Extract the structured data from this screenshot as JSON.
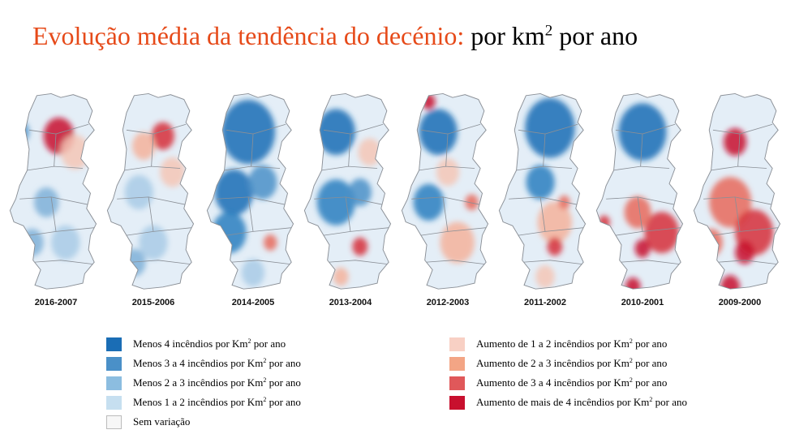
{
  "title": {
    "main": "Evolução média da tendência do decénio:",
    "unit_pre": " por km",
    "unit_sup": "2",
    "unit_post": " por ano"
  },
  "maps": [
    {
      "label": "2016-2007",
      "spots": [
        [
          "#c8102e",
          0.53,
          0.22,
          0.16
        ],
        [
          "#4a90c8",
          0.12,
          0.2,
          0.1
        ],
        [
          "#f4c7b6",
          0.7,
          0.3,
          0.15
        ],
        [
          "#7fb0d8",
          0.4,
          0.55,
          0.13
        ],
        [
          "#a9cbe6",
          0.6,
          0.75,
          0.15
        ],
        [
          "#7fb0d8",
          0.25,
          0.75,
          0.12
        ]
      ]
    },
    {
      "label": "2015-2006",
      "spots": [
        [
          "#d6303a",
          0.6,
          0.22,
          0.12
        ],
        [
          "#f4b39c",
          0.4,
          0.27,
          0.12
        ],
        [
          "#a9cbe6",
          0.35,
          0.5,
          0.15
        ],
        [
          "#f4c7b6",
          0.7,
          0.4,
          0.13
        ],
        [
          "#a9cbe6",
          0.5,
          0.75,
          0.15
        ],
        [
          "#7fb0d8",
          0.3,
          0.85,
          0.12
        ]
      ]
    },
    {
      "label": "2014-2005",
      "spots": [
        [
          "#1a6db5",
          0.45,
          0.2,
          0.28
        ],
        [
          "#1a6db5",
          0.3,
          0.5,
          0.2
        ],
        [
          "#2b7fc0",
          0.25,
          0.7,
          0.18
        ],
        [
          "#e86a5c",
          0.68,
          0.75,
          0.07
        ],
        [
          "#4a90c8",
          0.6,
          0.45,
          0.15
        ],
        [
          "#a9cbe6",
          0.5,
          0.9,
          0.12
        ]
      ]
    },
    {
      "label": "2013-2004",
      "spots": [
        [
          "#1a6db5",
          0.35,
          0.2,
          0.2
        ],
        [
          "#2b7fc0",
          0.35,
          0.55,
          0.2
        ],
        [
          "#d6303a",
          0.6,
          0.77,
          0.08
        ],
        [
          "#f4c7b6",
          0.7,
          0.3,
          0.12
        ],
        [
          "#4a90c8",
          0.6,
          0.5,
          0.12
        ],
        [
          "#f4b39c",
          0.4,
          0.92,
          0.08
        ]
      ]
    },
    {
      "label": "2012-2003",
      "spots": [
        [
          "#c8102e",
          0.3,
          0.05,
          0.07
        ],
        [
          "#1a6db5",
          0.4,
          0.2,
          0.2
        ],
        [
          "#2b7fc0",
          0.3,
          0.55,
          0.16
        ],
        [
          "#f4b39c",
          0.6,
          0.75,
          0.18
        ],
        [
          "#e86a5c",
          0.75,
          0.55,
          0.07
        ],
        [
          "#f4c7b6",
          0.5,
          0.4,
          0.12
        ]
      ]
    },
    {
      "label": "2011-2002",
      "spots": [
        [
          "#1a6db5",
          0.55,
          0.18,
          0.26
        ],
        [
          "#2b7fc0",
          0.45,
          0.45,
          0.15
        ],
        [
          "#f4b39c",
          0.6,
          0.65,
          0.18
        ],
        [
          "#d6303a",
          0.6,
          0.77,
          0.08
        ],
        [
          "#e86a5c",
          0.7,
          0.55,
          0.06
        ],
        [
          "#f4c7b6",
          0.5,
          0.92,
          0.1
        ]
      ]
    },
    {
      "label": "2010-2001",
      "spots": [
        [
          "#1a6db5",
          0.5,
          0.2,
          0.25
        ],
        [
          "#d6303a",
          0.7,
          0.7,
          0.18
        ],
        [
          "#c8102e",
          0.5,
          0.78,
          0.08
        ],
        [
          "#e86a5c",
          0.45,
          0.6,
          0.14
        ],
        [
          "#c8102e",
          0.4,
          0.97,
          0.08
        ],
        [
          "#d6303a",
          0.1,
          0.65,
          0.06
        ]
      ]
    },
    {
      "label": "2009-2000",
      "spots": [
        [
          "#c8102e",
          0.45,
          0.25,
          0.12
        ],
        [
          "#e86a5c",
          0.4,
          0.55,
          0.22
        ],
        [
          "#d6303a",
          0.65,
          0.7,
          0.2
        ],
        [
          "#c8102e",
          0.55,
          0.8,
          0.1
        ],
        [
          "#c8102e",
          0.4,
          0.97,
          0.1
        ],
        [
          "#e86a5c",
          0.2,
          0.75,
          0.12
        ]
      ]
    }
  ],
  "legend": [
    {
      "color": "#1a6db5",
      "pre": "Menos 4 incêndios por Km",
      "sup": "2",
      "post": " por ano"
    },
    {
      "color": "#4a90c8",
      "pre": "Menos  3 a 4 incêndios por Km",
      "sup": "2",
      "post": " por ano"
    },
    {
      "color": "#8cbde0",
      "pre": "Menos   2 a 3 incêndios por Km",
      "sup": "2",
      "post": " por ano"
    },
    {
      "color": "#c6dff0",
      "pre": "Menos   1 a 2 incêndios por Km",
      "sup": "2",
      "post": " por ano"
    },
    {
      "color": "#f7f7f7",
      "pre": "Sem variação",
      "sup": "",
      "post": ""
    },
    {
      "color": "#f8d0c4",
      "pre": "Aumento de 1 a 2 incêndios por Km",
      "sup": "2",
      "post": " por ano"
    },
    {
      "color": "#f3a585",
      "pre": "Aumento de 2 a 3 incêndios por Km",
      "sup": "2",
      "post": " por ano"
    },
    {
      "color": "#e0585a",
      "pre": "Aumento de 3 a 4 incêndios por Km",
      "sup": "2",
      "post": " por ano"
    },
    {
      "color": "#c8102e",
      "pre": "Aumento de mais de 4 incêndios por Km",
      "sup": "2",
      "post": " por ano"
    }
  ]
}
